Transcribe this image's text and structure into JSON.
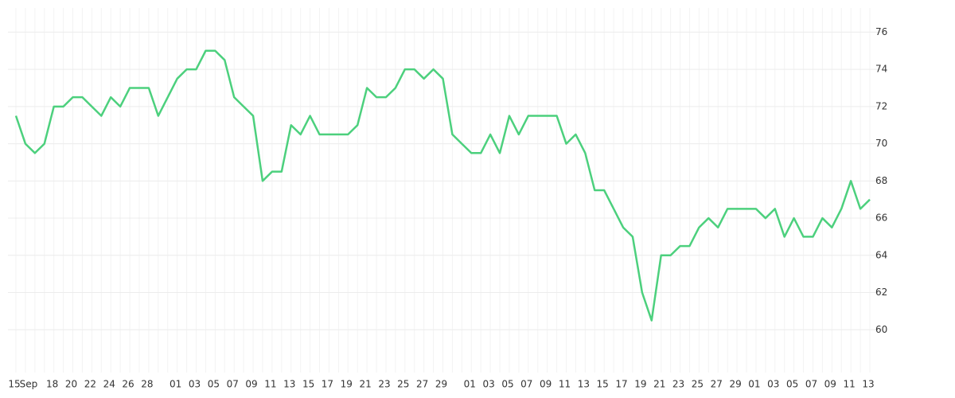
{
  "chart_data": {
    "type": "line",
    "categories": [
      "15",
      "Sep",
      null,
      null,
      "18",
      null,
      "20",
      null,
      "22",
      null,
      "24",
      null,
      "26",
      null,
      "28",
      null,
      null,
      "01",
      null,
      "03",
      null,
      "05",
      null,
      "07",
      null,
      "09",
      null,
      "11",
      null,
      "13",
      null,
      "15",
      null,
      "17",
      null,
      "19",
      null,
      "21",
      null,
      "23",
      null,
      "25",
      null,
      "27",
      null,
      "29",
      null,
      null,
      "01",
      null,
      "03",
      null,
      "05",
      null,
      "07",
      null,
      "09",
      null,
      "11",
      null,
      "13",
      null,
      "15",
      null,
      "17",
      null,
      "19",
      null,
      "21",
      null,
      "23",
      null,
      "25",
      null,
      "27",
      null,
      "29",
      null,
      "01",
      null,
      "03",
      null,
      "05",
      null,
      "07",
      null,
      "09",
      null,
      "11",
      null,
      "13"
    ],
    "series": [
      {
        "color": "#4cd07d",
        "values": [
          71.5,
          70,
          69.5,
          70,
          72,
          72,
          72.5,
          72.5,
          72,
          71.5,
          72.5,
          72,
          73,
          73,
          73,
          71.5,
          72.5,
          73.5,
          74,
          74,
          75,
          75,
          74.5,
          72.5,
          72,
          71.5,
          68,
          68.5,
          68.5,
          71,
          70.5,
          71.5,
          70.5,
          70.5,
          70.5,
          70.5,
          71,
          73,
          72.5,
          72.5,
          73,
          74,
          74,
          73.5,
          74,
          73.5,
          70.5,
          70,
          69.5,
          69.5,
          70.5,
          69.5,
          71.5,
          70.5,
          71.5,
          71.5,
          71.5,
          71.5,
          70,
          70.5,
          69.5,
          67.5,
          67.5,
          66.5,
          65.5,
          65,
          62,
          60.5,
          64,
          64,
          64.5,
          64.5,
          65.5,
          66,
          65.5,
          66.5,
          66.5,
          66.5,
          66.5,
          66,
          66.5,
          65,
          66,
          65,
          65,
          66,
          65.5,
          66.5,
          68,
          66.5,
          67
        ]
      }
    ],
    "ylim": [
      57.7,
      77.3
    ],
    "yticks": [
      60,
      62,
      64,
      66,
      68,
      70,
      72,
      74,
      76
    ],
    "grid": true
  }
}
